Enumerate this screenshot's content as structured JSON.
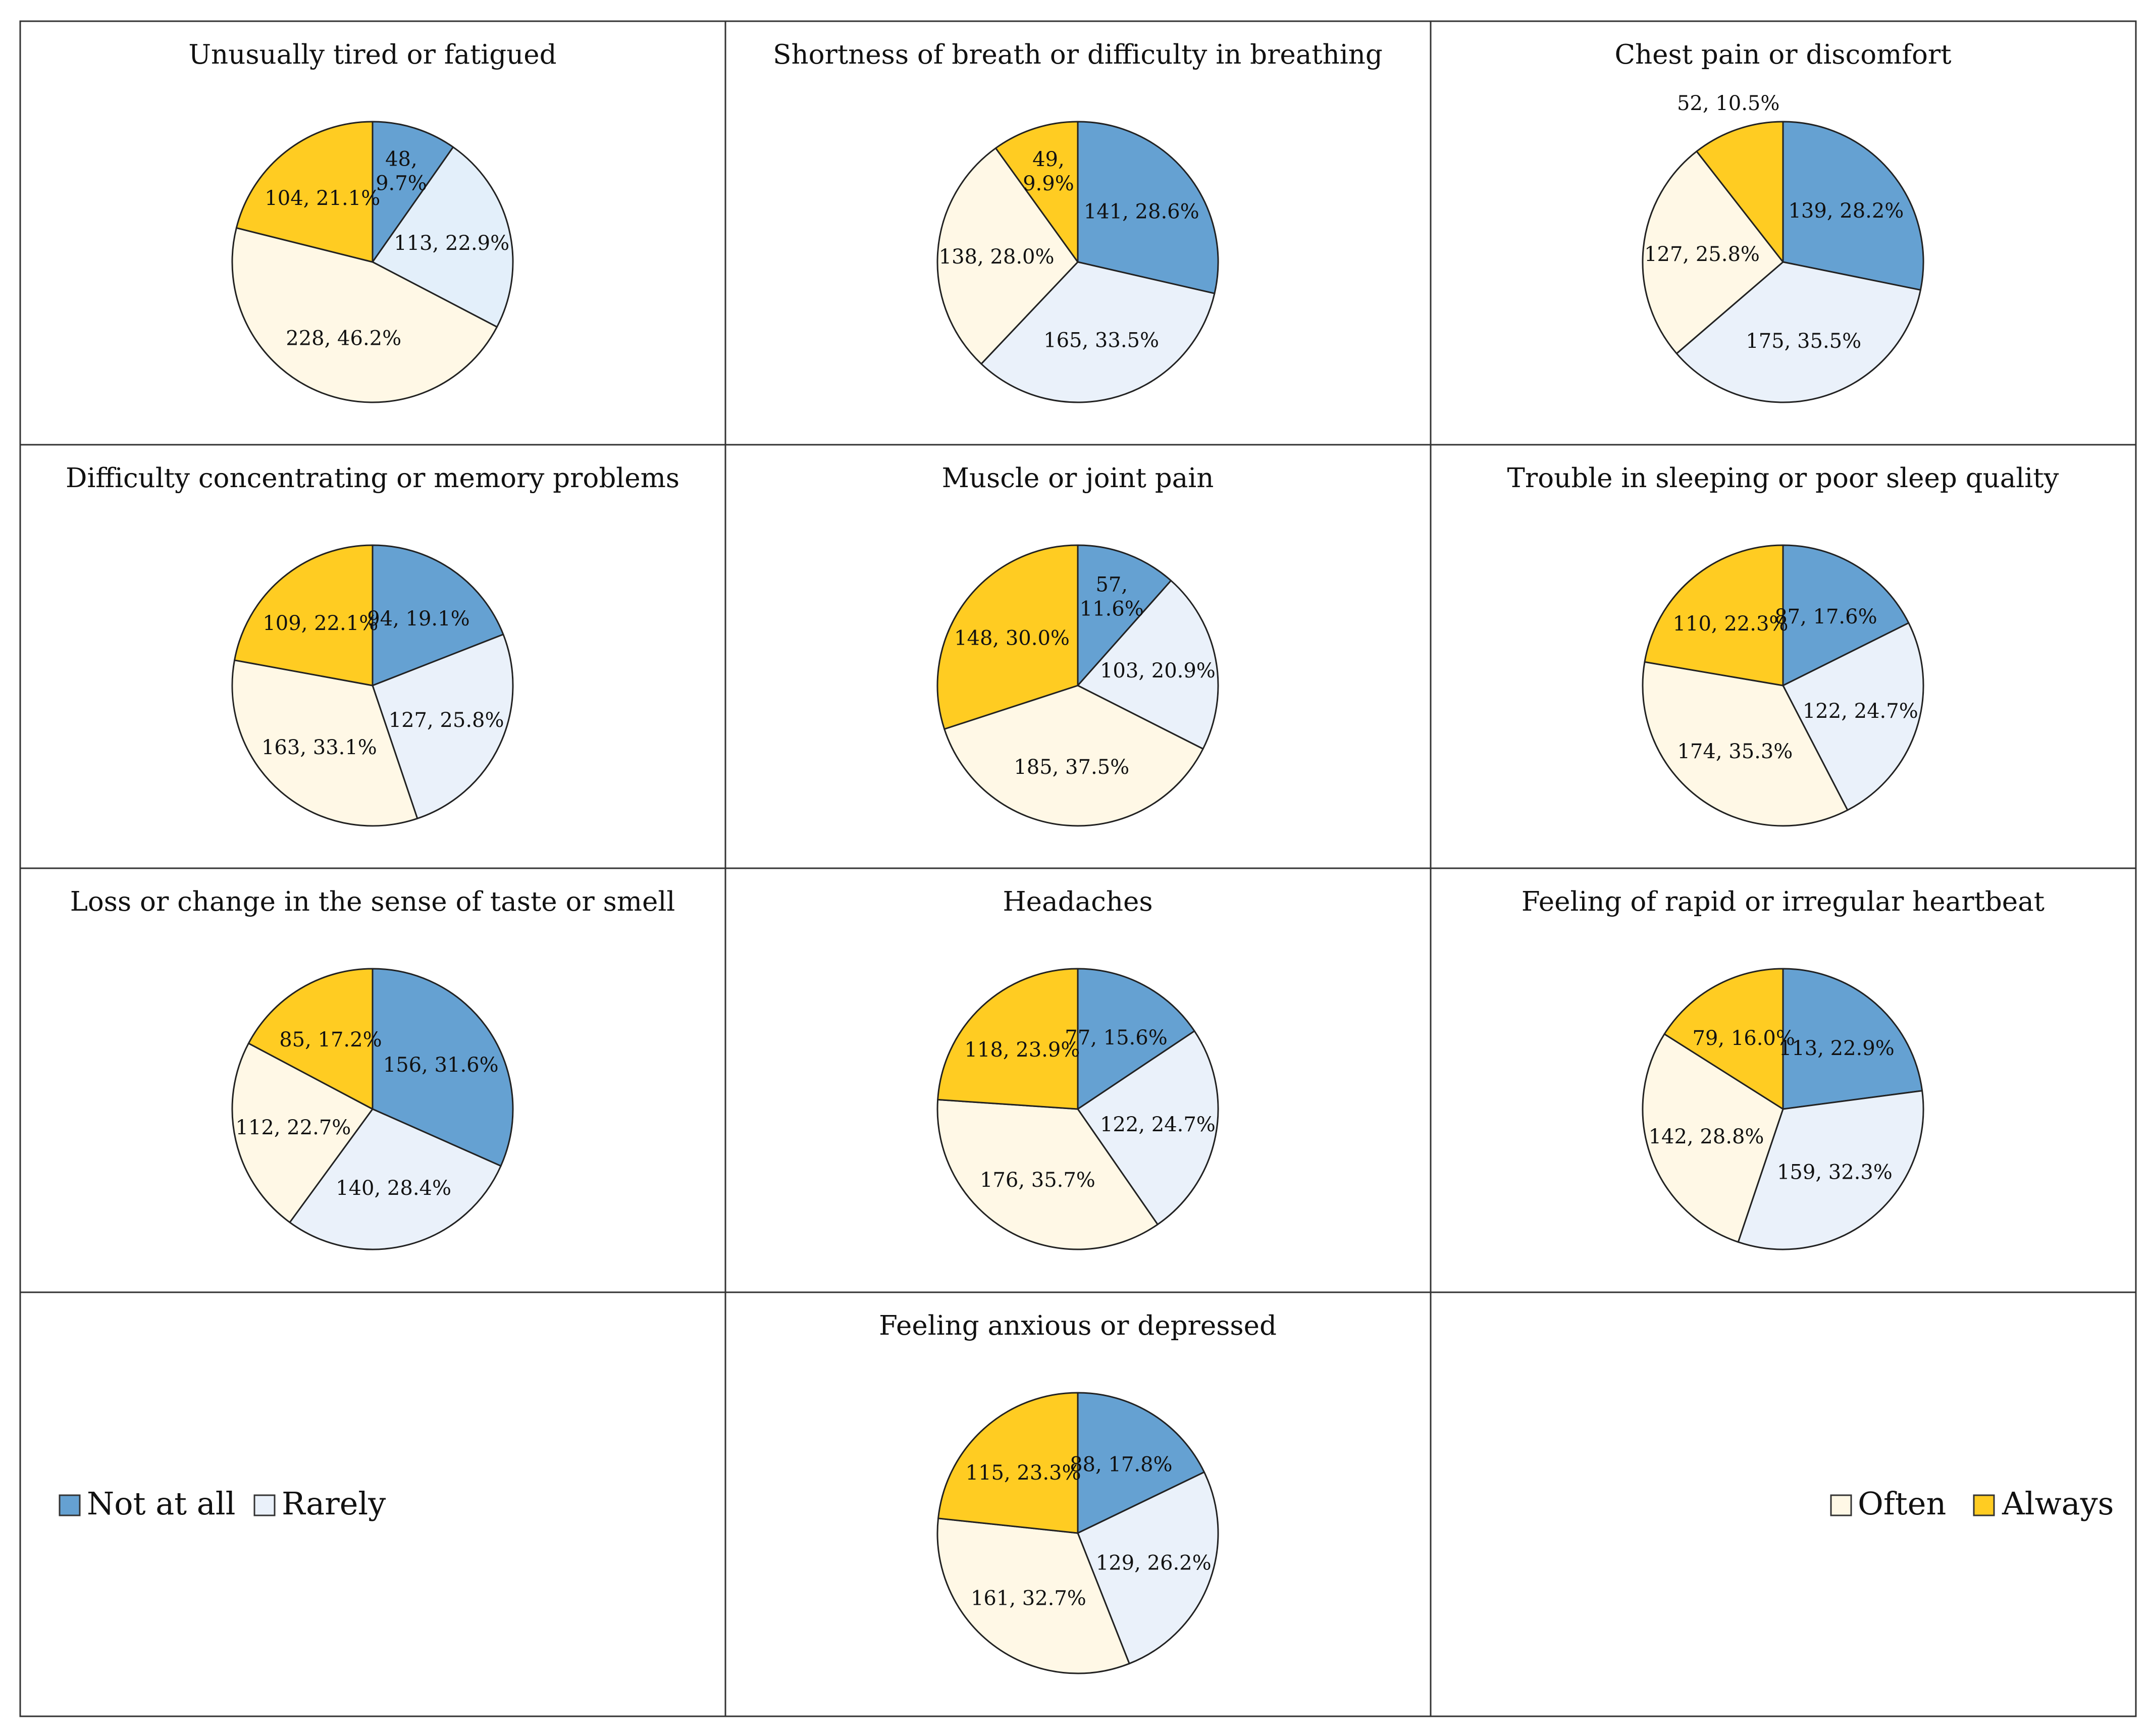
{
  "colors": {
    "Not at all": "#65A1D2",
    "Rarely": "#EAF1FA",
    "Often": "#FFF8E6",
    "Always": "#FFCC22",
    "rarely_alt": "#E3EFFA"
  },
  "legend": {
    "not_at_all": "Not at all",
    "rarely": "Rarely",
    "often": "Often",
    "always": "Always"
  },
  "chart_data": [
    {
      "type": "pie",
      "title": "Unusually tired or fatigued",
      "slices": [
        {
          "category": "Not at all",
          "value": 48,
          "label": "48,\n9.7%"
        },
        {
          "category": "Rarely",
          "value": 113,
          "label": "113, 22.9%",
          "color": "#E3EFFA"
        },
        {
          "category": "Often",
          "value": 228,
          "label": "228, 46.2%"
        },
        {
          "category": "Always",
          "value": 104,
          "label": "104, 21.1%"
        }
      ]
    },
    {
      "type": "pie",
      "title": "Shortness of breath or difficulty in breathing",
      "slices": [
        {
          "category": "Not at all",
          "value": 141,
          "label": "141, 28.6%"
        },
        {
          "category": "Rarely",
          "value": 165,
          "label": "165, 33.5%"
        },
        {
          "category": "Often",
          "value": 138,
          "label": "138, 28.0%"
        },
        {
          "category": "Always",
          "value": 49,
          "label": "49,\n9.9%"
        }
      ]
    },
    {
      "type": "pie",
      "title": "Chest pain or discomfort",
      "slices": [
        {
          "category": "Not at all",
          "value": 139,
          "label": "139, 28.2%"
        },
        {
          "category": "Rarely",
          "value": 175,
          "label": "175, 35.5%"
        },
        {
          "category": "Often",
          "value": 127,
          "label": "127, 25.8%"
        },
        {
          "category": "Always",
          "value": 52,
          "label": "52, 10.5%",
          "outside": true
        }
      ]
    },
    {
      "type": "pie",
      "title": "Difficulty concentrating or memory problems",
      "slices": [
        {
          "category": "Not at all",
          "value": 94,
          "label": "94, 19.1%"
        },
        {
          "category": "Rarely",
          "value": 127,
          "label": "127, 25.8%"
        },
        {
          "category": "Often",
          "value": 163,
          "label": "163, 33.1%"
        },
        {
          "category": "Always",
          "value": 109,
          "label": "109, 22.1%"
        }
      ]
    },
    {
      "type": "pie",
      "title": "Muscle or joint pain",
      "slices": [
        {
          "category": "Not at all",
          "value": 57,
          "label": "57,\n11.6%"
        },
        {
          "category": "Rarely",
          "value": 103,
          "label": "103, 20.9%"
        },
        {
          "category": "Often",
          "value": 185,
          "label": "185, 37.5%"
        },
        {
          "category": "Always",
          "value": 148,
          "label": "148, 30.0%"
        }
      ]
    },
    {
      "type": "pie",
      "title": "Trouble in sleeping or poor sleep quality",
      "slices": [
        {
          "category": "Not at all",
          "value": 87,
          "label": "87, 17.6%"
        },
        {
          "category": "Rarely",
          "value": 122,
          "label": "122, 24.7%"
        },
        {
          "category": "Often",
          "value": 174,
          "label": "174, 35.3%"
        },
        {
          "category": "Always",
          "value": 110,
          "label": "110, 22.3%"
        }
      ]
    },
    {
      "type": "pie",
      "title": "Loss or change in the sense of taste or smell",
      "slices": [
        {
          "category": "Not at all",
          "value": 156,
          "label": "156, 31.6%"
        },
        {
          "category": "Rarely",
          "value": 140,
          "label": "140, 28.4%"
        },
        {
          "category": "Often",
          "value": 112,
          "label": "112, 22.7%"
        },
        {
          "category": "Always",
          "value": 85,
          "label": "85, 17.2%"
        }
      ]
    },
    {
      "type": "pie",
      "title": "Headaches",
      "slices": [
        {
          "category": "Not at all",
          "value": 77,
          "label": "77, 15.6%"
        },
        {
          "category": "Rarely",
          "value": 122,
          "label": "122, 24.7%"
        },
        {
          "category": "Often",
          "value": 176,
          "label": "176, 35.7%"
        },
        {
          "category": "Always",
          "value": 118,
          "label": "118, 23.9%"
        }
      ]
    },
    {
      "type": "pie",
      "title": "Feeling of rapid or irregular heartbeat",
      "slices": [
        {
          "category": "Not at all",
          "value": 113,
          "label": "113, 22.9%"
        },
        {
          "category": "Rarely",
          "value": 159,
          "label": "159, 32.3%"
        },
        {
          "category": "Often",
          "value": 142,
          "label": "142, 28.8%"
        },
        {
          "category": "Always",
          "value": 79,
          "label": "79, 16.0%"
        }
      ]
    },
    {
      "type": "pie",
      "title": "Feeling anxious or depressed",
      "slices": [
        {
          "category": "Not at all",
          "value": 88,
          "label": "88, 17.8%"
        },
        {
          "category": "Rarely",
          "value": 129,
          "label": "129, 26.2%"
        },
        {
          "category": "Often",
          "value": 161,
          "label": "161, 32.7%"
        },
        {
          "category": "Always",
          "value": 115,
          "label": "115, 23.3%"
        }
      ]
    }
  ]
}
